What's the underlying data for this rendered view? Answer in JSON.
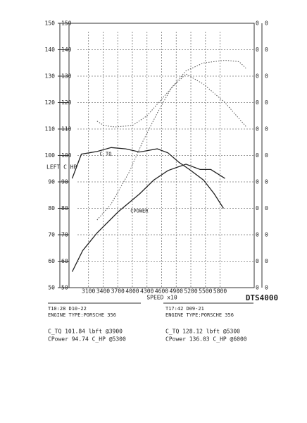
{
  "chart_data": {
    "type": "line",
    "x_label": "SPEED x10",
    "y_label": "LEFT C HP",
    "brand": "DTS4000",
    "xlim": [
      2700,
      6500
    ],
    "xticks": [
      3100,
      3400,
      3700,
      4000,
      4300,
      4600,
      4900,
      5200,
      5500,
      5800
    ],
    "ylim": [
      50,
      150
    ],
    "yticks": [
      50,
      60,
      70,
      80,
      90,
      100,
      110,
      120,
      130,
      140,
      150
    ],
    "right_labels": [
      "0",
      "0",
      "0",
      "0",
      "0",
      "0",
      "0",
      "0",
      "0",
      "0",
      "0"
    ],
    "grid": true,
    "series": [
      {
        "color": "#555555",
        "dashed": true,
        "x": [
          3275,
          3420,
          3640,
          4000,
          4300,
          4730,
          5100,
          5460,
          5900,
          6190,
          6330
        ],
        "values": [
          113,
          111.3,
          110.8,
          111.3,
          115,
          124,
          132,
          135,
          136,
          135.5,
          133
        ]
      },
      {
        "color": "#555555",
        "dashed": true,
        "x": [
          3275,
          3560,
          3930,
          4220,
          4510,
          4800,
          5100,
          5460,
          5900,
          6330
        ],
        "values": [
          75.6,
          81.5,
          93.5,
          105.5,
          116,
          125.5,
          130.8,
          127,
          120,
          111
        ]
      },
      {
        "color": "#222222",
        "dashed": false,
        "x": [
          2765,
          2955,
          3275,
          3565,
          3860,
          4150,
          4510,
          4730,
          4950,
          5170,
          5460,
          5680,
          5870
        ],
        "values": [
          91.3,
          100.5,
          101.5,
          103,
          102.5,
          101.3,
          102.5,
          101,
          97.5,
          94.7,
          90.7,
          85.5,
          80
        ]
      },
      {
        "color": "#222222",
        "dashed": false,
        "x": [
          2765,
          2980,
          3275,
          3710,
          4150,
          4440,
          4730,
          5100,
          5390,
          5610,
          5900
        ],
        "values": [
          56,
          64,
          70.7,
          78.7,
          85.5,
          90.7,
          94.3,
          96.7,
          94.7,
          94.7,
          91.3
        ]
      }
    ],
    "annotations": [
      {
        "text": "C TQ",
        "x": 3330,
        "y": 100.5
      },
      {
        "text": "CPOWER",
        "x": 3960,
        "y": 79
      }
    ],
    "runs": [
      {
        "time": "T10:28 D10-22",
        "engine": "ENGINE TYPE:PORSCHE 356",
        "torque": "C_TQ 101.84 lbft @3900",
        "power": "CPower 94.74 C_HP @5300"
      },
      {
        "time": "T17:42 D09-21",
        "engine": "ENGINE TYPE:PORSCHE 356",
        "torque": "C_TQ 128.12 lbft @5300",
        "power": "CPower 136.03 C_HP @6000"
      }
    ]
  }
}
